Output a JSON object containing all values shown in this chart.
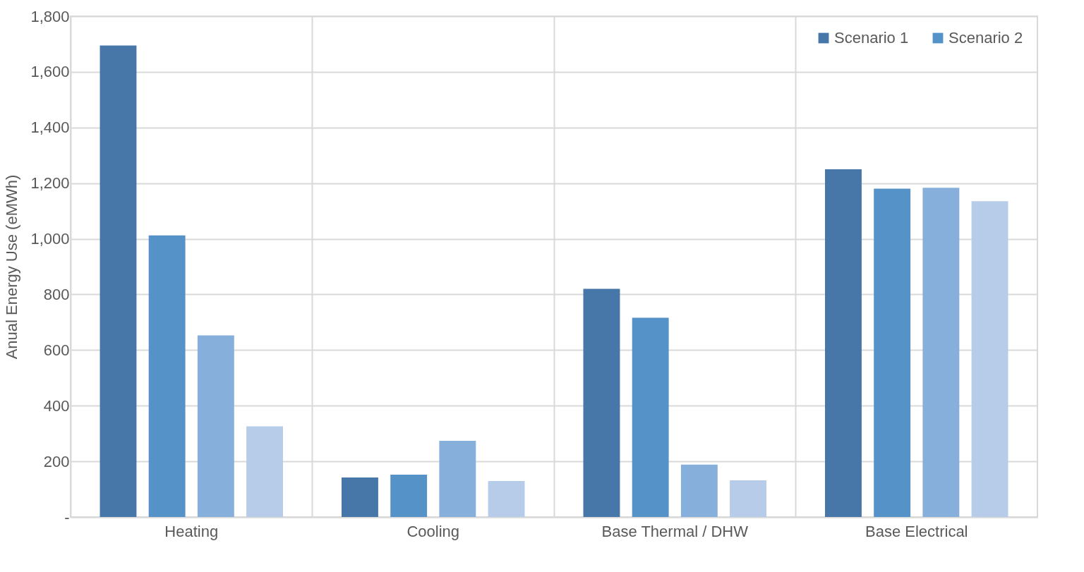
{
  "chart_data": {
    "type": "bar",
    "ylabel": "Anual Energy Use (eMWh)",
    "categories": [
      "Heating",
      "Cooling",
      "Base Thermal / DHW",
      "Base Electrical"
    ],
    "series": [
      {
        "name": "Scenario 1",
        "color": "#4677a8",
        "values": [
          1695,
          142,
          820,
          1250
        ]
      },
      {
        "name": "Scenario 2",
        "color": "#5592c8",
        "values": [
          1012,
          152,
          716,
          1180
        ]
      },
      {
        "color": "#87afdb",
        "values": [
          653,
          274,
          188,
          1183
        ]
      },
      {
        "color": "#b7cce8",
        "values": [
          326,
          129,
          132,
          1135
        ]
      }
    ],
    "ylim": [
      0,
      1800
    ],
    "yticks": [
      {
        "value": 0,
        "label": "-"
      },
      200,
      400,
      600,
      800,
      {
        "value": 1000,
        "label": "1,000"
      },
      {
        "value": 1200,
        "label": "1,200"
      },
      {
        "value": 1400,
        "label": "1,400"
      },
      {
        "value": 1600,
        "label": "1,600"
      },
      {
        "value": 1800,
        "label": "1,800"
      }
    ],
    "grid": true,
    "legend": "top right"
  }
}
